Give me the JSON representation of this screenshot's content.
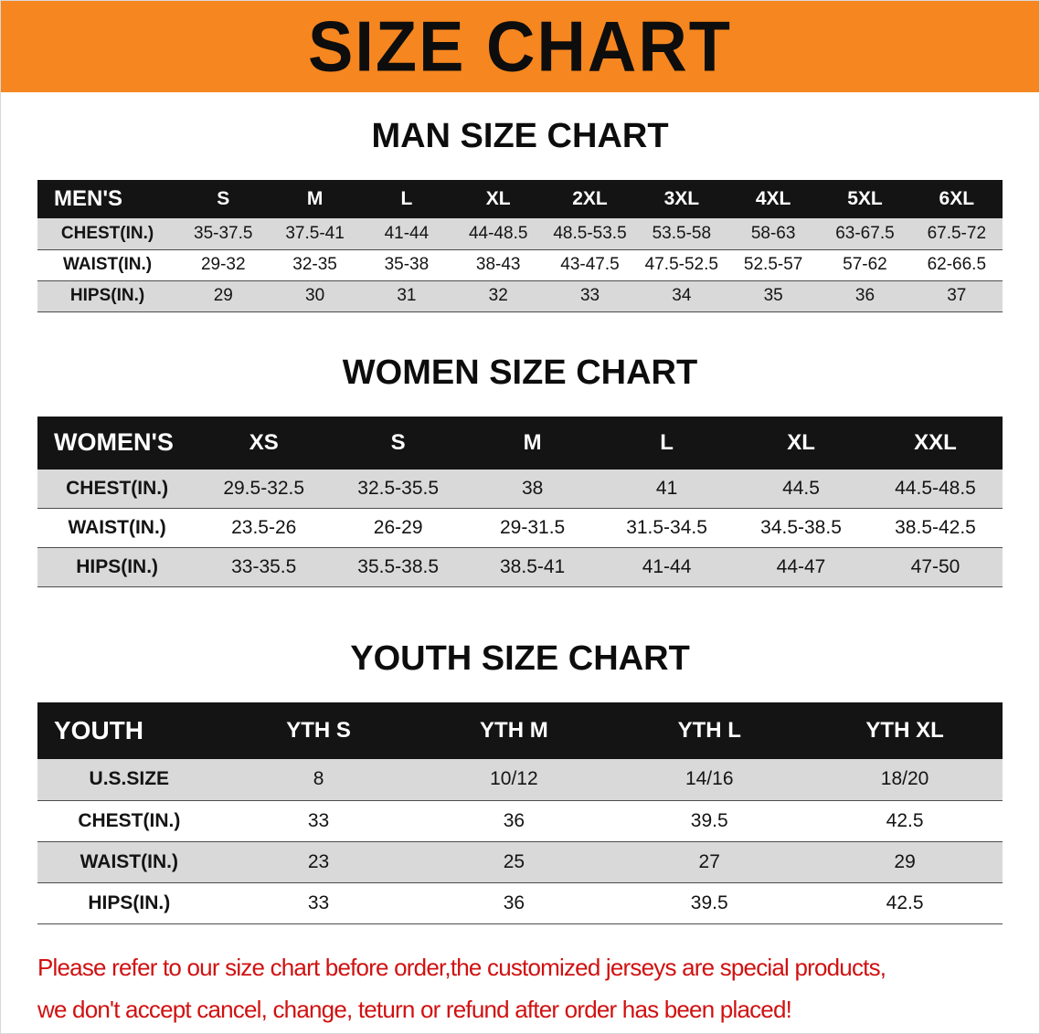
{
  "banner": {
    "title": "SIZE CHART",
    "bg_color": "#f6861f"
  },
  "colors": {
    "header_bar": "#141414",
    "row_alt_gray": "#d9d9d9",
    "disclaimer_red": "#d01111"
  },
  "sections": [
    {
      "heading": "MAN SIZE CHART",
      "table_kind": "men",
      "table": {
        "header": [
          "MEN'S",
          "S",
          "M",
          "L",
          "XL",
          "2XL",
          "3XL",
          "4XL",
          "5XL",
          "6XL"
        ],
        "rows": [
          [
            "CHEST(IN.)",
            "35-37.5",
            "37.5-41",
            "41-44",
            "44-48.5",
            "48.5-53.5",
            "53.5-58",
            "58-63",
            "63-67.5",
            "67.5-72"
          ],
          [
            "WAIST(IN.)",
            "29-32",
            "32-35",
            "35-38",
            "38-43",
            "43-47.5",
            "47.5-52.5",
            "52.5-57",
            "57-62",
            "62-66.5"
          ],
          [
            "HIPS(IN.)",
            "29",
            "30",
            "31",
            "32",
            "33",
            "34",
            "35",
            "36",
            "37"
          ]
        ]
      }
    },
    {
      "heading": "WOMEN SIZE CHART",
      "table_kind": "women",
      "table": {
        "header": [
          "WOMEN'S",
          "XS",
          "S",
          "M",
          "L",
          "XL",
          "XXL"
        ],
        "rows": [
          [
            "CHEST(IN.)",
            "29.5-32.5",
            "32.5-35.5",
            "38",
            "41",
            "44.5",
            "44.5-48.5"
          ],
          [
            "WAIST(IN.)",
            "23.5-26",
            "26-29",
            "29-31.5",
            "31.5-34.5",
            "34.5-38.5",
            "38.5-42.5"
          ],
          [
            "HIPS(IN.)",
            "33-35.5",
            "35.5-38.5",
            "38.5-41",
            "41-44",
            "44-47",
            "47-50"
          ]
        ]
      }
    },
    {
      "heading": "YOUTH SIZE CHART",
      "table_kind": "youth",
      "table": {
        "header": [
          "YOUTH",
          "YTH S",
          "YTH M",
          "YTH L",
          "YTH XL"
        ],
        "rows": [
          [
            "U.S.SIZE",
            "8",
            "10/12",
            "14/16",
            "18/20"
          ],
          [
            "CHEST(IN.)",
            "33",
            "36",
            "39.5",
            "42.5"
          ],
          [
            "WAIST(IN.)",
            "23",
            "25",
            "27",
            "29"
          ],
          [
            "HIPS(IN.)",
            "33",
            "36",
            "39.5",
            "42.5"
          ]
        ]
      }
    }
  ],
  "disclaimer": {
    "lines": [
      "Please refer to our size chart before order,the customized jerseys are special products,",
      "we don't accept cancel, change, teturn or refund after order has been placed!"
    ]
  }
}
